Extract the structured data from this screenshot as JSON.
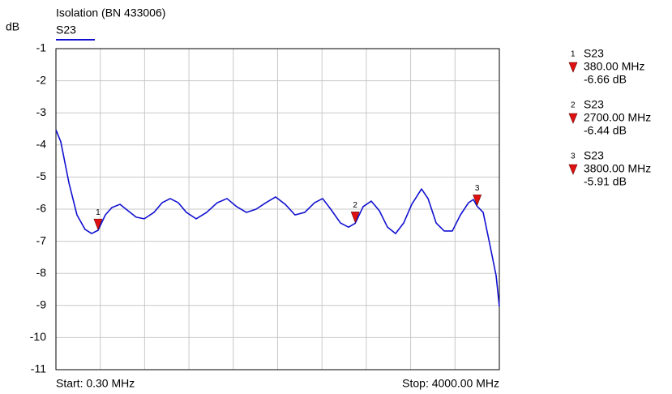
{
  "chart_data": {
    "type": "line",
    "title": "Isolation (BN 433006)",
    "y_label": "dB",
    "start_label": "Start: 0.30 MHz",
    "stop_label": "Stop: 4000.00 MHz",
    "xlim": [
      0.3,
      4000
    ],
    "xticks": [
      400,
      800,
      1200,
      1600,
      2000,
      2400,
      2800,
      3200,
      3600
    ],
    "ylim": [
      -11,
      -1
    ],
    "yticks": [
      -1,
      -2,
      -3,
      -4,
      -5,
      -6,
      -7,
      -8,
      -9,
      -10,
      -11
    ],
    "grid": true,
    "x": [
      0.3,
      44,
      117,
      190,
      263,
      322,
      380,
      446,
      505,
      578,
      651,
      724,
      797,
      885,
      958,
      1031,
      1104,
      1177,
      1265,
      1360,
      1455,
      1543,
      1630,
      1718,
      1806,
      1894,
      1982,
      2069,
      2157,
      2245,
      2333,
      2406,
      2479,
      2567,
      2640,
      2700,
      2772,
      2845,
      2918,
      2991,
      3064,
      3137,
      3210,
      3298,
      3357,
      3430,
      3503,
      3576,
      3649,
      3722,
      3766,
      3800,
      3854,
      3912,
      3971,
      4000
    ],
    "series": [
      {
        "name": "S23",
        "color": "#1010d0",
        "values": [
          -3.53,
          -3.9,
          -5.17,
          -6.18,
          -6.63,
          -6.76,
          -6.66,
          -6.18,
          -5.95,
          -5.85,
          -6.05,
          -6.25,
          -6.3,
          -6.1,
          -5.8,
          -5.67,
          -5.8,
          -6.1,
          -6.3,
          -6.1,
          -5.8,
          -5.67,
          -5.92,
          -6.1,
          -6.0,
          -5.8,
          -5.62,
          -5.85,
          -6.18,
          -6.1,
          -5.8,
          -5.67,
          -6.0,
          -6.43,
          -6.56,
          -6.44,
          -5.92,
          -5.75,
          -6.05,
          -6.56,
          -6.76,
          -6.43,
          -5.85,
          -5.37,
          -5.67,
          -6.43,
          -6.68,
          -6.68,
          -6.18,
          -5.8,
          -5.7,
          -5.91,
          -6.1,
          -7.06,
          -8.07,
          -9.03
        ]
      }
    ],
    "markers": [
      {
        "label": "1",
        "trace": "S23",
        "x": 380,
        "x_label": "380.00 MHz",
        "y": -6.66,
        "y_label": "-6.66 dB"
      },
      {
        "label": "2",
        "trace": "S23",
        "x": 2700,
        "x_label": "2700.00 MHz",
        "y": -6.44,
        "y_label": "-6.44 dB"
      },
      {
        "label": "3",
        "trace": "S23",
        "x": 3800,
        "x_label": "3800.00 MHz",
        "y": -5.91,
        "y_label": "-5.91 dB"
      }
    ],
    "marker_color": "#e01010"
  }
}
